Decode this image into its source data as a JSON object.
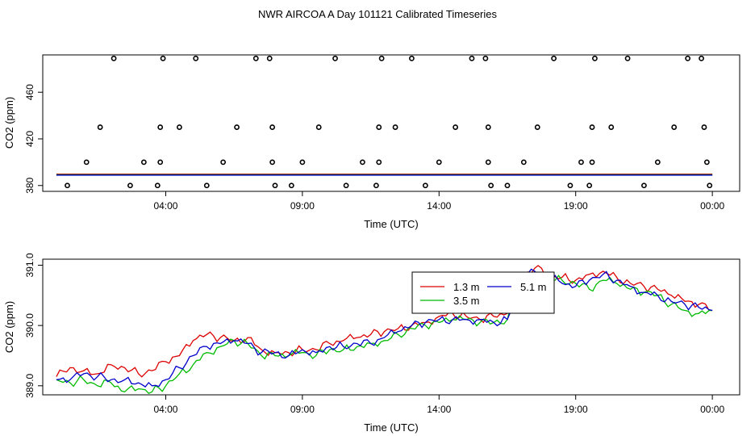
{
  "title": "NWR AIRCOA A  Day 101121  Calibrated Timeseries",
  "colors": {
    "s1": "#dd0000",
    "s2": "#00bb00",
    "s3": "#0000cc",
    "axis": "#000000"
  },
  "chart_data": [
    {
      "type": "scatter",
      "title": "",
      "xlabel": "Time (UTC)",
      "ylabel": "CO2 (ppm)",
      "x_ticks": [
        4,
        9,
        14,
        19,
        24
      ],
      "x_tick_labels": [
        "04:00",
        "09:00",
        "14:00",
        "19:00",
        "00:00"
      ],
      "y_ticks": [
        380,
        420,
        460
      ],
      "y_tick_labels": [
        "380",
        "420",
        "460"
      ],
      "xlim": [
        -0.5,
        25
      ],
      "ylim": [
        375,
        492
      ],
      "outliers": [
        [
          0.4,
          380
        ],
        [
          1.1,
          400
        ],
        [
          1.6,
          430
        ],
        [
          2.1,
          489
        ],
        [
          2.7,
          380
        ],
        [
          3.2,
          400
        ],
        [
          3.7,
          380
        ],
        [
          3.8,
          400
        ],
        [
          3.8,
          430
        ],
        [
          3.9,
          489
        ],
        [
          4.5,
          430
        ],
        [
          5.1,
          489
        ],
        [
          5.5,
          380
        ],
        [
          6.1,
          400
        ],
        [
          6.6,
          430
        ],
        [
          7.3,
          489
        ],
        [
          7.8,
          489
        ],
        [
          7.9,
          430
        ],
        [
          7.9,
          400
        ],
        [
          8.0,
          380
        ],
        [
          8.6,
          380
        ],
        [
          9.0,
          400
        ],
        [
          9.6,
          430
        ],
        [
          10.2,
          489
        ],
        [
          10.6,
          380
        ],
        [
          11.2,
          400
        ],
        [
          11.7,
          380
        ],
        [
          11.8,
          400
        ],
        [
          11.8,
          430
        ],
        [
          11.9,
          489
        ],
        [
          12.4,
          430
        ],
        [
          13.0,
          489
        ],
        [
          13.5,
          380
        ],
        [
          14.0,
          400
        ],
        [
          14.6,
          430
        ],
        [
          15.2,
          489
        ],
        [
          15.7,
          489
        ],
        [
          15.8,
          430
        ],
        [
          15.8,
          400
        ],
        [
          15.9,
          380
        ],
        [
          16.5,
          380
        ],
        [
          17.1,
          400
        ],
        [
          17.6,
          430
        ],
        [
          18.2,
          489
        ],
        [
          18.8,
          380
        ],
        [
          19.2,
          400
        ],
        [
          19.5,
          380
        ],
        [
          19.6,
          400
        ],
        [
          19.6,
          430
        ],
        [
          19.7,
          489
        ],
        [
          20.3,
          430
        ],
        [
          20.9,
          489
        ],
        [
          21.5,
          380
        ],
        [
          22.0,
          400
        ],
        [
          22.6,
          430
        ],
        [
          23.1,
          489
        ],
        [
          23.6,
          489
        ],
        [
          23.7,
          430
        ],
        [
          23.8,
          400
        ],
        [
          23.9,
          380
        ]
      ],
      "series": [
        {
          "name": "1.3 m",
          "level": 389.3
        },
        {
          "name": "3.5 m",
          "level": 389.2
        },
        {
          "name": "5.1 m",
          "level": 389.3
        }
      ]
    },
    {
      "type": "line",
      "title": "",
      "xlabel": "Time (UTC)",
      "ylabel": "CO2 (ppm)",
      "x_ticks": [
        4,
        9,
        14,
        19,
        24
      ],
      "x_tick_labels": [
        "04:00",
        "09:00",
        "14:00",
        "19:00",
        "00:00"
      ],
      "y_ticks": [
        389.0,
        390.0,
        391.0
      ],
      "y_tick_labels": [
        "389.0",
        "390.0",
        "391.0"
      ],
      "xlim": [
        -0.5,
        25
      ],
      "ylim": [
        388.85,
        391.1
      ],
      "x": [
        0,
        0.5,
        1,
        1.5,
        2,
        2.5,
        3,
        3.5,
        4,
        4.5,
        5,
        5.5,
        6,
        6.5,
        7,
        7.5,
        8,
        8.5,
        9,
        9.5,
        10,
        10.5,
        11,
        11.5,
        12,
        12.5,
        13,
        13.5,
        14,
        14.5,
        15,
        15.5,
        16,
        16.5,
        17,
        17.5,
        18,
        18.5,
        19,
        19.5,
        20,
        20.5,
        21,
        21.5,
        22,
        22.5,
        23,
        23.5,
        24
      ],
      "series": [
        {
          "name": "1.3 m",
          "values": [
            389.15,
            389.3,
            389.25,
            389.2,
            389.35,
            389.3,
            389.2,
            389.25,
            389.4,
            389.5,
            389.75,
            389.85,
            389.8,
            389.75,
            389.8,
            389.6,
            389.55,
            389.55,
            389.6,
            389.6,
            389.7,
            389.75,
            389.8,
            389.85,
            389.9,
            389.95,
            390.0,
            390.05,
            390.15,
            390.2,
            390.15,
            390.1,
            390.15,
            390.2,
            390.8,
            390.95,
            390.85,
            390.8,
            390.75,
            390.85,
            390.9,
            390.8,
            390.7,
            390.65,
            390.6,
            390.5,
            390.4,
            390.35,
            390.25
          ]
        },
        {
          "name": "3.5 m",
          "values": [
            389.1,
            389.05,
            389.1,
            389.0,
            389.05,
            388.9,
            388.95,
            388.9,
            389.0,
            389.2,
            389.35,
            389.55,
            389.65,
            389.75,
            389.7,
            389.5,
            389.5,
            389.5,
            389.55,
            389.5,
            389.6,
            389.6,
            389.65,
            389.7,
            389.75,
            389.85,
            389.95,
            390.0,
            390.05,
            390.1,
            390.1,
            390.05,
            390.05,
            390.1,
            390.75,
            390.85,
            390.8,
            390.75,
            390.7,
            390.6,
            390.75,
            390.7,
            390.6,
            390.55,
            390.5,
            390.35,
            390.25,
            390.2,
            390.25
          ]
        },
        {
          "name": "5.1 m",
          "values": [
            389.1,
            389.1,
            389.2,
            389.15,
            389.1,
            389.1,
            389.05,
            389.0,
            389.1,
            389.3,
            389.5,
            389.65,
            389.7,
            389.75,
            389.7,
            389.55,
            389.55,
            389.5,
            389.6,
            389.55,
            389.65,
            389.65,
            389.7,
            389.7,
            389.8,
            389.9,
            390.0,
            390.05,
            390.1,
            390.1,
            390.1,
            390.1,
            390.05,
            390.1,
            390.75,
            390.9,
            390.8,
            390.7,
            390.65,
            390.75,
            390.85,
            390.75,
            390.65,
            390.55,
            390.5,
            390.4,
            390.35,
            390.3,
            390.25
          ]
        }
      ],
      "legend": {
        "position": "top-right",
        "entries": [
          "1.3 m",
          "3.5 m",
          "5.1 m"
        ]
      }
    }
  ]
}
